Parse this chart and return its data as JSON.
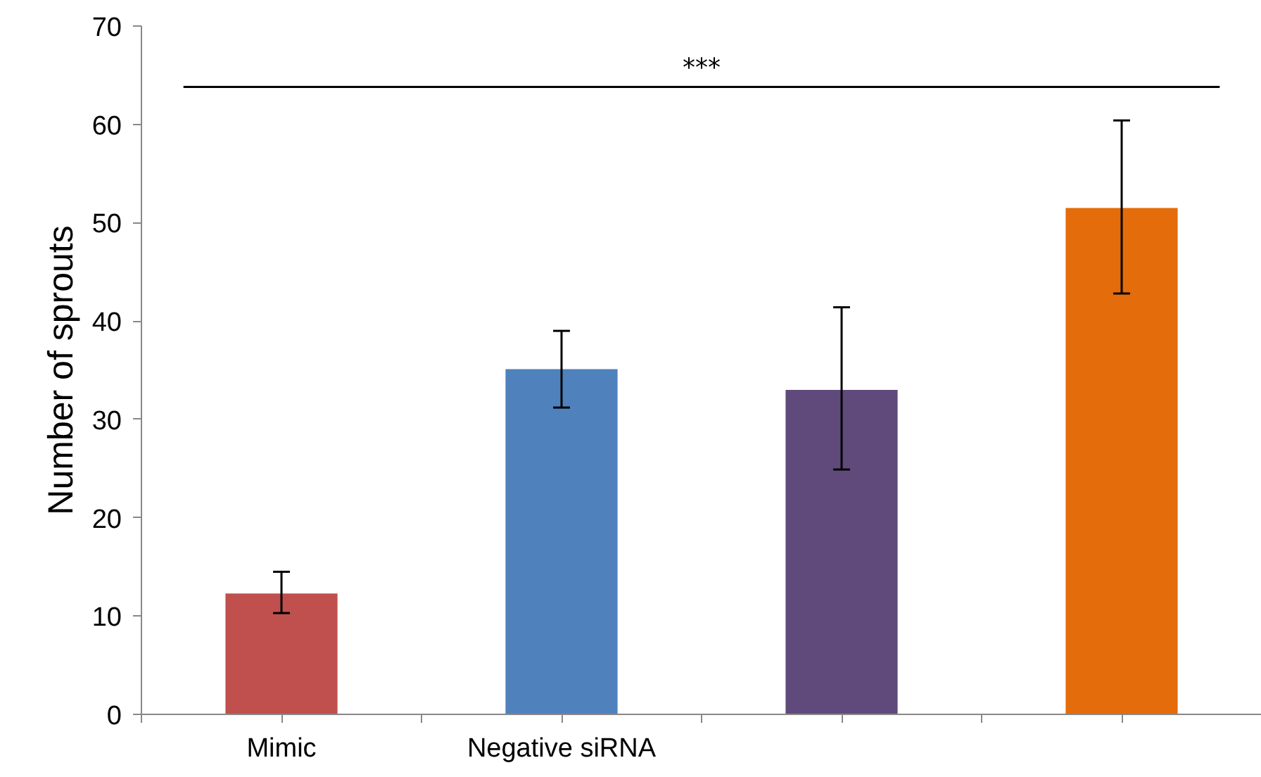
{
  "chart_data": {
    "type": "bar",
    "ylabel": "Number of sprouts",
    "categories": [
      "Mimic",
      "Negative siRNA",
      null,
      null
    ],
    "values": [
      12.3,
      35.1,
      33.0,
      51.5
    ],
    "colors": [
      "#c0504d",
      "#4f81bd",
      "#604a7b",
      "#e46c0a"
    ],
    "errors": [
      [
        10.3,
        14.5
      ],
      [
        31.2,
        39.0
      ],
      [
        24.9,
        41.4
      ],
      [
        42.8,
        60.4
      ]
    ],
    "ylim": [
      0,
      70
    ],
    "yticks": [
      0,
      10,
      20,
      30,
      40,
      50,
      60,
      70
    ],
    "grid": false,
    "ref_lines": [
      {
        "axis": "y",
        "value": 63.8,
        "label": "***",
        "color": "#000000"
      }
    ]
  }
}
